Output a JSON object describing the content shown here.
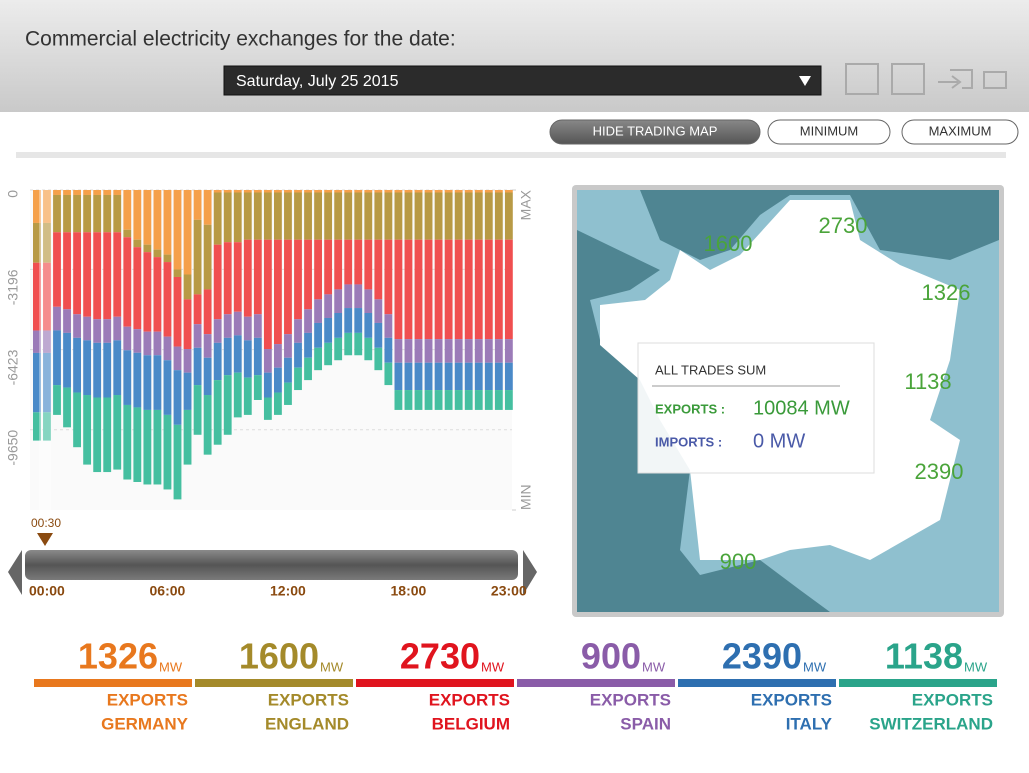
{
  "header": {
    "title": "Commercial electricity exchanges for the date:",
    "date": "Saturday, July 25 2015"
  },
  "buttons": [
    "HIDE TRADING MAP",
    "MINIMUM",
    "MAXIMUM"
  ],
  "chart_data": {
    "type": "bar",
    "stacked": true,
    "selected": "00:30",
    "categories": [
      "00:00",
      null,
      null,
      null,
      null,
      null,
      null,
      null,
      null,
      null,
      null,
      null,
      "06:00",
      null,
      null,
      null,
      null,
      null,
      null,
      null,
      null,
      null,
      null,
      null,
      "12:00",
      null,
      null,
      null,
      null,
      null,
      null,
      null,
      null,
      null,
      null,
      null,
      "18:00",
      null,
      null,
      null,
      null,
      null,
      null,
      null,
      null,
      null,
      "23:00",
      null
    ],
    "ylim": [
      -12877,
      0
    ],
    "yticks": [
      0,
      -3196,
      -6423,
      -9650
    ],
    "y2lim": [
      -12877,
      0
    ],
    "y2ticks": [
      {
        "value": 0,
        "label": "MAX"
      },
      {
        "value": -12877,
        "label": "MIN"
      }
    ],
    "grid": true,
    "series": [
      {
        "name": "GERMANY",
        "color": "#f5a04a",
        "values": [
          -1326,
          -1326,
          -200,
          -200,
          -200,
          -200,
          -200,
          -200,
          -200,
          -1600,
          -2000,
          -2200,
          -2400,
          -2600,
          -3200,
          -3400,
          -1200,
          -1400,
          -100,
          -100,
          -100,
          -100,
          -100,
          -100,
          -100,
          -100,
          -100,
          -100,
          -100,
          -100,
          -100,
          -100,
          -100,
          -100,
          -100,
          -100,
          -100,
          -100,
          -100,
          -100,
          -100,
          -100,
          -100,
          -100,
          -100,
          -100,
          -100,
          -100
        ]
      },
      {
        "name": "ENGLAND",
        "color": "#b89a45",
        "values": [
          -1600,
          -1600,
          -1500,
          -1500,
          -1500,
          -1500,
          -1500,
          -1500,
          -1500,
          -300,
          -300,
          -300,
          -300,
          -300,
          -300,
          -1000,
          -3000,
          -2600,
          -2100,
          -2000,
          -2000,
          -1900,
          -1900,
          -1900,
          -1900,
          -1900,
          -1900,
          -1900,
          -1900,
          -1900,
          -1900,
          -1900,
          -1900,
          -1900,
          -1900,
          -1900,
          -1900,
          -1900,
          -1900,
          -1900,
          -1900,
          -1900,
          -1900,
          -1900,
          -1900,
          -1900,
          -1900,
          -1900
        ]
      },
      {
        "name": "BELGIUM",
        "color": "#f04f50",
        "values": [
          -2730,
          -2730,
          -3000,
          -3100,
          -3300,
          -3400,
          -3500,
          -3500,
          -3400,
          -3600,
          -3300,
          -3200,
          -3000,
          -3000,
          -2800,
          -2000,
          -1200,
          -1800,
          -3000,
          -2900,
          -2800,
          -3100,
          -3000,
          -4400,
          -4200,
          -3800,
          -3200,
          -2800,
          -2400,
          -2200,
          -2000,
          -1800,
          -1800,
          -2000,
          -2400,
          -3000,
          -4000,
          -4000,
          -4000,
          -4000,
          -4000,
          -4000,
          -4000,
          -4000,
          -4000,
          -4000,
          -4000,
          -4000
        ]
      },
      {
        "name": "SPAIN",
        "color": "#9b7bb8",
        "values": [
          -900,
          -900,
          -950,
          -950,
          -950,
          -950,
          -950,
          -950,
          -950,
          -950,
          -950,
          -950,
          -950,
          -950,
          -950,
          -950,
          -950,
          -950,
          -950,
          -950,
          -950,
          -950,
          -950,
          -950,
          -950,
          -950,
          -950,
          -950,
          -950,
          -950,
          -950,
          -950,
          -950,
          -950,
          -950,
          -950,
          -950,
          -950,
          -950,
          -950,
          -950,
          -950,
          -950,
          -950,
          -950,
          -950,
          -950,
          -950
        ]
      },
      {
        "name": "ITALY",
        "color": "#4a8ac8",
        "values": [
          -2390,
          -2390,
          -2200,
          -2200,
          -2200,
          -2200,
          -2200,
          -2200,
          -2200,
          -2200,
          -2200,
          -2200,
          -2200,
          -2200,
          -2200,
          -1500,
          -1500,
          -1500,
          -1500,
          -1500,
          -1500,
          -1500,
          -1500,
          -1000,
          -1000,
          -1000,
          -1000,
          -1000,
          -1000,
          -1000,
          -1000,
          -1000,
          -1000,
          -1000,
          -1000,
          -1000,
          -1100,
          -1100,
          -1100,
          -1100,
          -1100,
          -1100,
          -1100,
          -1100,
          -1100,
          -1100,
          -1100,
          -1100
        ]
      },
      {
        "name": "SWITZERLAND",
        "color": "#45bfa0",
        "values": [
          -1138,
          -1138,
          -1200,
          -1600,
          -2200,
          -2800,
          -3000,
          -3000,
          -3000,
          -3000,
          -3000,
          -3000,
          -3000,
          -3000,
          -3000,
          -2200,
          -2000,
          -2400,
          -2600,
          -2400,
          -1800,
          -1500,
          -1000,
          -900,
          -900,
          -900,
          -900,
          -900,
          -900,
          -900,
          -900,
          -900,
          -900,
          -900,
          -900,
          -900,
          -800,
          -800,
          -800,
          -800,
          -800,
          -800,
          -800,
          -800,
          -800,
          -800,
          -800,
          -800
        ]
      }
    ]
  },
  "map": {
    "box_title": "ALL TRADES SUM",
    "exports_label": "EXPORTS :",
    "exports_value": "10084 MW",
    "imports_label": "IMPORTS :",
    "imports_value": "0 MW"
  },
  "summary": [
    {
      "value": 1326,
      "unit": "MW",
      "label": "EXPORTS",
      "country": "GERMANY",
      "color": "#e8781e"
    },
    {
      "value": 1600,
      "unit": "MW",
      "label": "EXPORTS",
      "country": "ENGLAND",
      "color": "#a48a2a"
    },
    {
      "value": 2730,
      "unit": "MW",
      "label": "EXPORTS",
      "country": "BELGIUM",
      "color": "#e0141e"
    },
    {
      "value": 900,
      "unit": "MW",
      "label": "EXPORTS",
      "country": "SPAIN",
      "color": "#8a5ca8"
    },
    {
      "value": 2390,
      "unit": "MW",
      "label": "EXPORTS",
      "country": "ITALY",
      "color": "#2e6fb0"
    },
    {
      "value": 1138,
      "unit": "MW",
      "label": "EXPORTS",
      "country": "SWITZERLAND",
      "color": "#2aa48a"
    }
  ]
}
